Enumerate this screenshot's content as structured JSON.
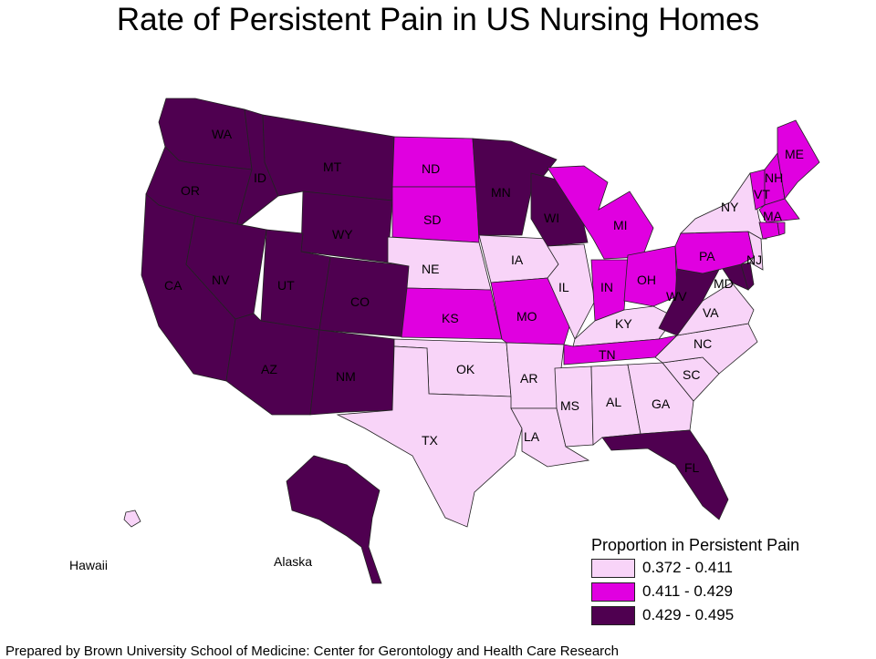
{
  "title": "Rate of Persistent Pain in US Nursing Homes",
  "colors": {
    "low": "#f8d4f8",
    "mid": "#e000e0",
    "high": "#4f0050"
  },
  "legend": {
    "title": "Proportion in Persistent Pain",
    "items": [
      {
        "label": "0.372 - 0.411",
        "color": "#f8d4f8"
      },
      {
        "label": "0.411 - 0.429",
        "color": "#e000e0"
      },
      {
        "label": "0.429 - 0.495",
        "color": "#4f0050"
      }
    ]
  },
  "states": {
    "WA": {
      "label": "WA",
      "class": "high"
    },
    "OR": {
      "label": "OR",
      "class": "high"
    },
    "ID": {
      "label": "ID",
      "class": "high"
    },
    "MT": {
      "label": "MT",
      "class": "high"
    },
    "WY": {
      "label": "WY",
      "class": "high"
    },
    "CA": {
      "label": "CA",
      "class": "high"
    },
    "NV": {
      "label": "NV",
      "class": "high"
    },
    "UT": {
      "label": "UT",
      "class": "high"
    },
    "CO": {
      "label": "CO",
      "class": "high"
    },
    "AZ": {
      "label": "AZ",
      "class": "high"
    },
    "NM": {
      "label": "NM",
      "class": "high"
    },
    "ND": {
      "label": "ND",
      "class": "mid"
    },
    "SD": {
      "label": "SD",
      "class": "mid"
    },
    "NE": {
      "label": "NE",
      "class": "low"
    },
    "KS": {
      "label": "KS",
      "class": "mid"
    },
    "OK": {
      "label": "OK",
      "class": "low"
    },
    "TX": {
      "label": "TX",
      "class": "low"
    },
    "MN": {
      "label": "MN",
      "class": "high"
    },
    "IA": {
      "label": "IA",
      "class": "low"
    },
    "MO": {
      "label": "MO",
      "class": "mid"
    },
    "AR": {
      "label": "AR",
      "class": "low"
    },
    "LA": {
      "label": "LA",
      "class": "low"
    },
    "WI": {
      "label": "WI",
      "class": "high"
    },
    "IL": {
      "label": "IL",
      "class": "low"
    },
    "MI": {
      "label": "MI",
      "class": "mid"
    },
    "IN": {
      "label": "IN",
      "class": "mid"
    },
    "OH": {
      "label": "OH",
      "class": "mid"
    },
    "KY": {
      "label": "KY",
      "class": "low"
    },
    "TN": {
      "label": "TN",
      "class": "mid"
    },
    "MS": {
      "label": "MS",
      "class": "low"
    },
    "AL": {
      "label": "AL",
      "class": "low"
    },
    "GA": {
      "label": "GA",
      "class": "low"
    },
    "FL": {
      "label": "FL",
      "class": "high"
    },
    "SC": {
      "label": "SC",
      "class": "low"
    },
    "NC": {
      "label": "NC",
      "class": "low"
    },
    "VA": {
      "label": "VA",
      "class": "low"
    },
    "WV": {
      "label": "WV",
      "class": "high"
    },
    "MD": {
      "label": "MD",
      "class": "high"
    },
    "PA": {
      "label": "PA",
      "class": "mid"
    },
    "NY": {
      "label": "NY",
      "class": "low"
    },
    "NJ": {
      "label": "NJ",
      "class": "low"
    },
    "VT": {
      "label": "VT",
      "class": "mid"
    },
    "NH": {
      "label": "NH",
      "class": "mid"
    },
    "ME": {
      "label": "ME",
      "class": "mid"
    },
    "MA": {
      "label": "MA",
      "class": "mid"
    },
    "CT": {
      "label": "",
      "class": "mid"
    },
    "RI": {
      "label": "",
      "class": "mid"
    },
    "DE": {
      "label": "",
      "class": "high"
    },
    "AK": {
      "label": "",
      "class": "high"
    },
    "HI": {
      "label": "",
      "class": "low"
    }
  },
  "region_labels": {
    "hawaii": "Hawaii",
    "alaska": "Alaska"
  },
  "footer": "Prepared by Brown University School of Medicine: Center for Gerontology and Health Care Research"
}
